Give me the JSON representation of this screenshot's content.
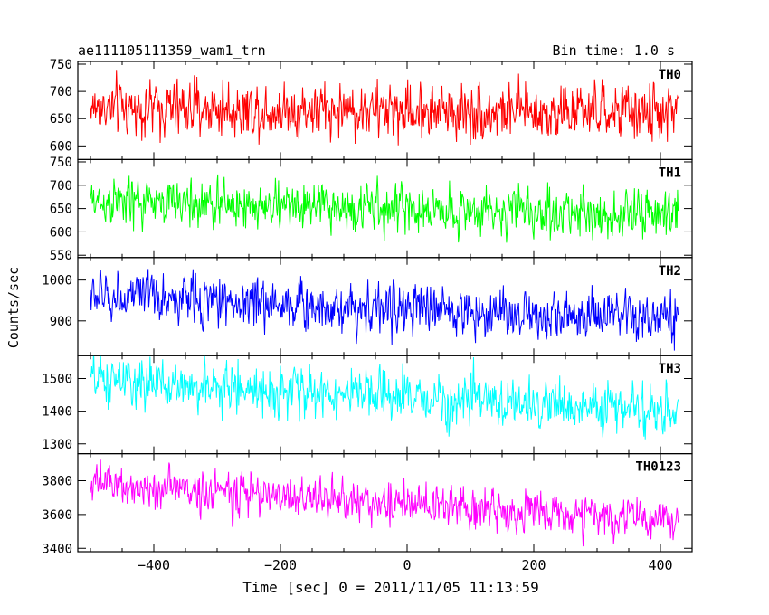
{
  "header": {
    "title": "ae111105111359_wam1_trn",
    "bin_time": "Bin time: 1.0 s"
  },
  "chart_data": {
    "type": "line",
    "title": "ae111105111359_wam1_trn",
    "xlabel": "Time [sec] 0 = 2011/11/05 11:13:59",
    "ylabel": "Counts/sec",
    "xlim": [
      -520,
      450
    ],
    "x_start": -500,
    "x_end": 428,
    "x_step": 1,
    "x_ticks": [
      -400,
      -200,
      0,
      200,
      400
    ],
    "grid": false,
    "panels": [
      {
        "name": "TH0",
        "color": "#ff0000",
        "ylim": [
          575,
          755
        ],
        "yticks": [
          600,
          650,
          700,
          750
        ],
        "start_mean": 670,
        "end_mean": 660,
        "noise_sigma": 26
      },
      {
        "name": "TH1",
        "color": "#00ff00",
        "ylim": [
          545,
          755
        ],
        "yticks": [
          550,
          600,
          650,
          700,
          750
        ],
        "start_mean": 665,
        "end_mean": 635,
        "noise_sigma": 26
      },
      {
        "name": "TH2",
        "color": "#0000ff",
        "ylim": [
          815,
          1055
        ],
        "yticks": [
          900,
          1000
        ],
        "start_mean": 962,
        "end_mean": 900,
        "noise_sigma": 31
      },
      {
        "name": "TH3",
        "color": "#00ffff",
        "ylim": [
          1270,
          1570
        ],
        "yticks": [
          1300,
          1400,
          1500
        ],
        "start_mean": 1492,
        "end_mean": 1398,
        "noise_sigma": 38
      },
      {
        "name": "TH0123",
        "color": "#ff00ff",
        "ylim": [
          3380,
          3960
        ],
        "yticks": [
          3400,
          3600,
          3800
        ],
        "start_mean": 3780,
        "end_mean": 3560,
        "noise_sigma": 62
      }
    ]
  }
}
